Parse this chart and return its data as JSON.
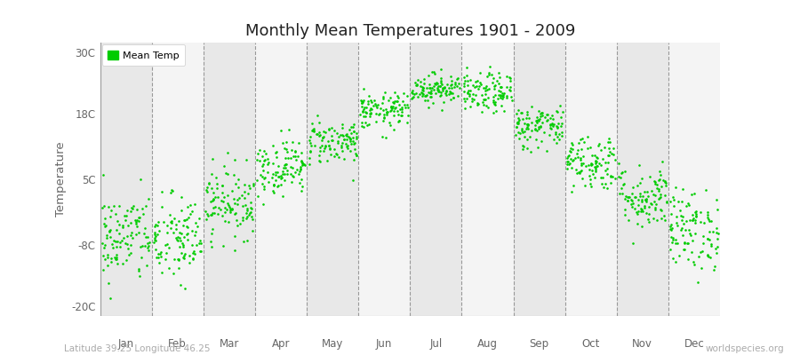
{
  "title": "Monthly Mean Temperatures 1901 - 2009",
  "ylabel": "Temperature",
  "bottom_left": "Latitude 39.25 Longitude 46.25",
  "bottom_right": "worldspecies.org",
  "legend_label": "Mean Temp",
  "dot_color": "#00cc00",
  "figure_facecolor": "#ffffff",
  "plot_facecolor": "#ffffff",
  "band_colors": [
    "#e8e8e8",
    "#f4f4f4"
  ],
  "yticks": [
    -20,
    -8,
    5,
    18,
    30
  ],
  "ytick_labels": [
    "-20C",
    "-8C",
    "5C",
    "18C",
    "30C"
  ],
  "ylim": [
    -22,
    32
  ],
  "months": [
    "Jan",
    "Feb",
    "Mar",
    "Apr",
    "May",
    "Jun",
    "Jul",
    "Aug",
    "Sep",
    "Oct",
    "Nov",
    "Dec"
  ],
  "mean_temps": [
    -6.5,
    -7.0,
    0.5,
    7.5,
    12.5,
    18.5,
    23.0,
    22.0,
    15.5,
    8.5,
    1.5,
    -5.0
  ],
  "std_temps": [
    4.5,
    4.5,
    3.5,
    2.8,
    2.2,
    1.8,
    1.5,
    2.0,
    2.2,
    2.8,
    3.2,
    4.0
  ],
  "n_years": 109,
  "vline_color": "#999999",
  "tick_color": "#666666",
  "title_color": "#222222",
  "label_color": "#666666",
  "anno_color": "#aaaaaa"
}
